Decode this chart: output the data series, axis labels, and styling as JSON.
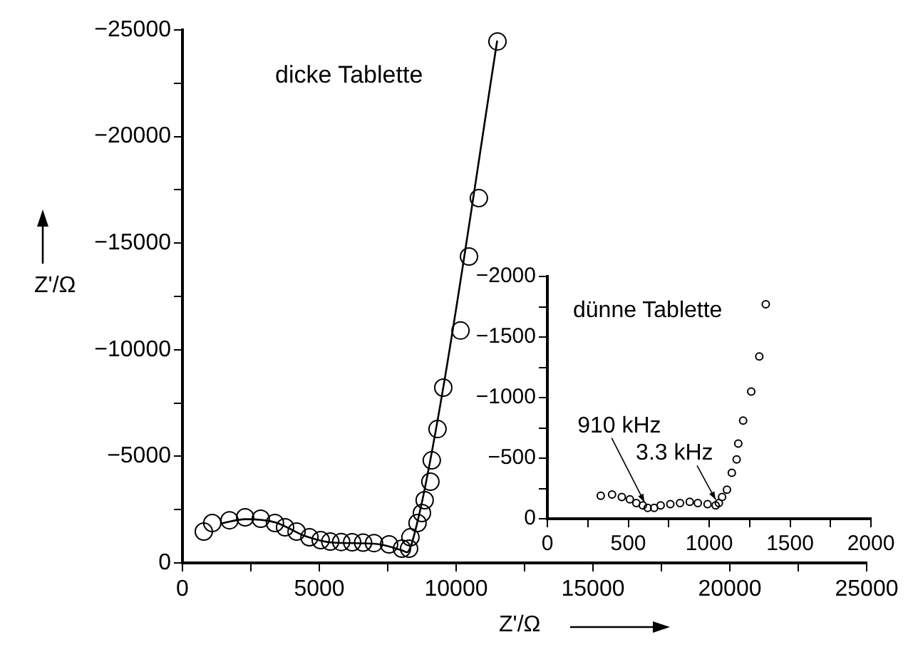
{
  "chart_data": [
    {
      "type": "scatter",
      "xlabel": "Z'/Ω",
      "ylabel": "Z'/Ω",
      "annotations": [
        "dicke Tablette"
      ],
      "marker": "circle",
      "xlim": [
        0,
        25000
      ],
      "xticks": [
        0,
        {
          "value": 2500,
          "label": null
        },
        5000,
        {
          "value": 7500,
          "label": null
        },
        10000,
        {
          "value": 12500,
          "label": null
        },
        15000,
        {
          "value": 17500,
          "label": null
        },
        20000,
        {
          "value": 22500,
          "label": null
        },
        25000
      ],
      "ylim": [
        0,
        -25000
      ],
      "yticks": [
        0,
        {
          "value": -2500,
          "label": null
        },
        -5000,
        {
          "value": -7500,
          "label": null
        },
        -10000,
        {
          "value": -12500,
          "label": null
        },
        -15000,
        {
          "value": -17500,
          "label": null
        },
        -20000,
        {
          "value": -22500,
          "label": null
        },
        -25000
      ],
      "series": [
        {
          "color": "#000000",
          "x": [
            780,
            1090,
            1720,
            2290,
            2860,
            3380,
            3750,
            4170,
            4640,
            5050,
            5400,
            5800,
            6200,
            6600,
            7000,
            7550,
            8020,
            8280,
            8330,
            8590,
            8750,
            8850,
            9060,
            9110,
            9320,
            9530,
            10160,
            10470,
            10830,
            11510
          ],
          "values": [
            -1470,
            -1870,
            -2000,
            -2140,
            -2070,
            -1870,
            -1670,
            -1470,
            -1200,
            -1070,
            -1000,
            -980,
            -970,
            -950,
            -930,
            -870,
            -670,
            -670,
            -1200,
            -1870,
            -2340,
            -2940,
            -3810,
            -4810,
            -6280,
            -8220,
            -10900,
            -14370,
            -17110,
            -24460
          ]
        },
        {
          "type": "line",
          "marker": "none",
          "color": "#000000",
          "x": [
            1400,
            2300,
            3400,
            4500,
            5500,
            7000,
            8000,
            8200,
            8600,
            9500,
            11500
          ],
          "values": [
            -1850,
            -2050,
            -1900,
            -1250,
            -950,
            -900,
            -600,
            -500,
            -2000,
            -8000,
            -24500
          ]
        }
      ]
    },
    {
      "type": "scatter",
      "annotations": [
        "dünne Tablette",
        {
          "text": "910 kHz",
          "x": 600,
          "y": -90
        },
        {
          "text": "3.3 kHz",
          "x": 1040,
          "y": -110
        }
      ],
      "marker": "circle",
      "xlim": [
        0,
        2000
      ],
      "xticks": [
        0,
        {
          "value": 250,
          "label": null
        },
        500,
        {
          "value": 750,
          "label": null
        },
        1000,
        {
          "value": 1250,
          "label": null
        },
        1500,
        {
          "value": 1750,
          "label": null
        },
        2000
      ],
      "ylim": [
        0,
        -2000
      ],
      "yticks": [
        0,
        {
          "value": -250,
          "label": null
        },
        -500,
        {
          "value": -750,
          "label": null
        },
        -1000,
        {
          "value": -1250,
          "label": null
        },
        -1500,
        {
          "value": -1750,
          "label": null
        },
        -2000
      ],
      "series": [
        {
          "color": "#000000",
          "x": [
            330,
            400,
            460,
            510,
            550,
            590,
            620,
            660,
            700,
            760,
            820,
            880,
            930,
            990,
            1040,
            1060,
            1080,
            1110,
            1140,
            1170,
            1180,
            1210,
            1260,
            1310,
            1350
          ],
          "values": [
            -190,
            -200,
            -180,
            -160,
            -130,
            -110,
            -90,
            -90,
            -110,
            -120,
            -130,
            -140,
            -130,
            -120,
            -110,
            -130,
            -180,
            -240,
            -380,
            -490,
            -620,
            -810,
            -1050,
            -1340,
            -1770
          ]
        }
      ]
    }
  ]
}
